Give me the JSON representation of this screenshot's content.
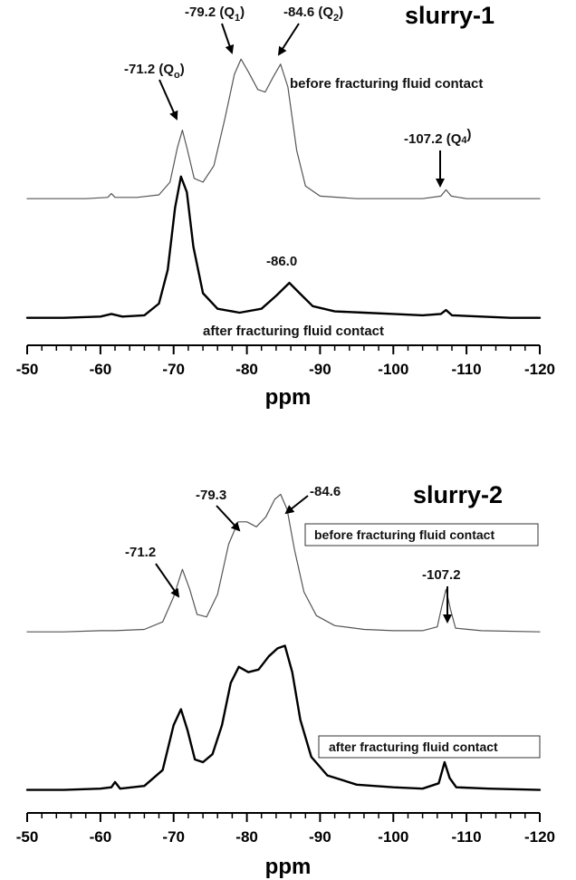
{
  "chart_data": [
    {
      "type": "line",
      "title": "slurry-1",
      "xlabel": "ppm",
      "xlim": [
        -50,
        -120
      ],
      "x_reversed": true,
      "x_ticks": [
        "-50",
        "-60",
        "-70",
        "-80",
        "-90",
        "-100",
        "-110",
        "-120"
      ],
      "x_tick_values": [
        -50,
        -60,
        -70,
        -80,
        -90,
        -100,
        -110,
        -120
      ],
      "y_axis_shown": false,
      "series": [
        {
          "name": "before fracturing fluid contact",
          "color": "#555555",
          "points": [
            [
              -50,
              0.02
            ],
            [
              -54,
              0.02
            ],
            [
              -58,
              0.02
            ],
            [
              -61,
              0.03
            ],
            [
              -61.5,
              0.06
            ],
            [
              -62,
              0.03
            ],
            [
              -65,
              0.03
            ],
            [
              -68,
              0.05
            ],
            [
              -69.5,
              0.15
            ],
            [
              -70.5,
              0.42
            ],
            [
              -71.2,
              0.56
            ],
            [
              -71.9,
              0.4
            ],
            [
              -72.8,
              0.18
            ],
            [
              -74,
              0.15
            ],
            [
              -75.5,
              0.28
            ],
            [
              -77,
              0.65
            ],
            [
              -78.3,
              1.0
            ],
            [
              -79.2,
              1.12
            ],
            [
              -80.2,
              1.02
            ],
            [
              -81.5,
              0.88
            ],
            [
              -82.5,
              0.86
            ],
            [
              -83.6,
              0.98
            ],
            [
              -84.6,
              1.08
            ],
            [
              -85.6,
              0.9
            ],
            [
              -86.8,
              0.4
            ],
            [
              -88,
              0.12
            ],
            [
              -90,
              0.04
            ],
            [
              -95,
              0.02
            ],
            [
              -100,
              0.02
            ],
            [
              -104,
              0.02
            ],
            [
              -106.5,
              0.04
            ],
            [
              -107.2,
              0.09
            ],
            [
              -107.9,
              0.04
            ],
            [
              -110,
              0.02
            ],
            [
              -115,
              0.02
            ],
            [
              -120,
              0.02
            ]
          ]
        },
        {
          "name": "after fracturing fluid contact",
          "color": "#000000",
          "points": [
            [
              -50,
              0.03
            ],
            [
              -55,
              0.03
            ],
            [
              -60,
              0.04
            ],
            [
              -61.5,
              0.06
            ],
            [
              -63,
              0.04
            ],
            [
              -66,
              0.05
            ],
            [
              -68,
              0.14
            ],
            [
              -69.2,
              0.4
            ],
            [
              -70.2,
              0.88
            ],
            [
              -71.0,
              1.12
            ],
            [
              -71.8,
              1.0
            ],
            [
              -72.7,
              0.58
            ],
            [
              -74,
              0.22
            ],
            [
              -76,
              0.1
            ],
            [
              -79,
              0.07
            ],
            [
              -82,
              0.1
            ],
            [
              -84,
              0.2
            ],
            [
              -85.8,
              0.3
            ],
            [
              -87.2,
              0.22
            ],
            [
              -89,
              0.12
            ],
            [
              -92,
              0.08
            ],
            [
              -96,
              0.07
            ],
            [
              -100,
              0.06
            ],
            [
              -104,
              0.05
            ],
            [
              -106.5,
              0.06
            ],
            [
              -107.2,
              0.09
            ],
            [
              -108,
              0.05
            ],
            [
              -112,
              0.04
            ],
            [
              -116,
              0.03
            ],
            [
              -120,
              0.03
            ]
          ]
        }
      ],
      "annotations": [
        {
          "text": "-71.2 (Qo)",
          "at": -71.2
        },
        {
          "text": "-79.2 (Q1)",
          "at": -79.2
        },
        {
          "text": "-84.6 (Q2)",
          "at": -84.6
        },
        {
          "text": "-107.2 (Q4)",
          "at": -107.2
        },
        {
          "text": "-86.0",
          "at": -86.0
        }
      ]
    },
    {
      "type": "line",
      "title": "slurry-2",
      "xlabel": "ppm",
      "xlim": [
        -50,
        -120
      ],
      "x_reversed": true,
      "x_ticks": [
        "-50",
        "-60",
        "-70",
        "-80",
        "-90",
        "-100",
        "-110",
        "-120"
      ],
      "x_tick_values": [
        -50,
        -60,
        -70,
        -80,
        -90,
        -100,
        -110,
        -120
      ],
      "y_axis_shown": false,
      "series": [
        {
          "name": "before fracturing fluid contact",
          "color": "#555555",
          "points": [
            [
              -50,
              0.02
            ],
            [
              -55,
              0.02
            ],
            [
              -60,
              0.03
            ],
            [
              -62,
              0.03
            ],
            [
              -66,
              0.04
            ],
            [
              -68.5,
              0.1
            ],
            [
              -70,
              0.3
            ],
            [
              -71.2,
              0.52
            ],
            [
              -72.2,
              0.36
            ],
            [
              -73.2,
              0.16
            ],
            [
              -74.5,
              0.14
            ],
            [
              -76,
              0.32
            ],
            [
              -77.5,
              0.72
            ],
            [
              -78.8,
              0.9
            ],
            [
              -80,
              0.9
            ],
            [
              -81.3,
              0.86
            ],
            [
              -82.6,
              0.94
            ],
            [
              -83.8,
              1.08
            ],
            [
              -84.6,
              1.12
            ],
            [
              -85.5,
              1.0
            ],
            [
              -86.5,
              0.68
            ],
            [
              -87.8,
              0.34
            ],
            [
              -89.5,
              0.15
            ],
            [
              -92,
              0.07
            ],
            [
              -96,
              0.04
            ],
            [
              -100,
              0.03
            ],
            [
              -104,
              0.03
            ],
            [
              -106,
              0.06
            ],
            [
              -106.6,
              0.22
            ],
            [
              -107.2,
              0.36
            ],
            [
              -107.8,
              0.2
            ],
            [
              -108.5,
              0.05
            ],
            [
              -112,
              0.03
            ],
            [
              -120,
              0.02
            ]
          ]
        },
        {
          "name": "after fracturing fluid contact",
          "color": "#000000",
          "points": [
            [
              -50,
              0.03
            ],
            [
              -55,
              0.03
            ],
            [
              -60,
              0.04
            ],
            [
              -61.5,
              0.05
            ],
            [
              -62,
              0.09
            ],
            [
              -62.7,
              0.04
            ],
            [
              -66,
              0.06
            ],
            [
              -68.5,
              0.18
            ],
            [
              -70,
              0.52
            ],
            [
              -71.0,
              0.64
            ],
            [
              -71.9,
              0.48
            ],
            [
              -72.9,
              0.26
            ],
            [
              -74,
              0.24
            ],
            [
              -75.3,
              0.3
            ],
            [
              -76.6,
              0.52
            ],
            [
              -77.8,
              0.84
            ],
            [
              -78.9,
              0.96
            ],
            [
              -80.2,
              0.92
            ],
            [
              -81.6,
              0.94
            ],
            [
              -83,
              1.04
            ],
            [
              -84.2,
              1.1
            ],
            [
              -85.2,
              1.12
            ],
            [
              -86.2,
              0.92
            ],
            [
              -87.3,
              0.56
            ],
            [
              -88.8,
              0.28
            ],
            [
              -91,
              0.14
            ],
            [
              -95,
              0.07
            ],
            [
              -100,
              0.05
            ],
            [
              -104,
              0.04
            ],
            [
              -106.2,
              0.08
            ],
            [
              -107.0,
              0.24
            ],
            [
              -107.7,
              0.12
            ],
            [
              -108.6,
              0.05
            ],
            [
              -113,
              0.04
            ],
            [
              -120,
              0.03
            ]
          ]
        }
      ],
      "annotations": [
        {
          "text": "-71.2",
          "at": -71.2
        },
        {
          "text": "-79.3",
          "at": -79.3
        },
        {
          "text": "-84.6",
          "at": -84.6
        },
        {
          "text": "-107.2",
          "at": -107.2
        }
      ]
    }
  ],
  "panels": {
    "p1": {
      "title": "slurry-1",
      "xlabel": "ppm",
      "ticks": [
        "-50",
        "-60",
        "-70",
        "-80",
        "-90",
        "-100",
        "-110",
        "-120"
      ],
      "label_before": "before fracturing fluid contact",
      "label_after": "after fracturing fluid contact",
      "ann_q0_main": "-71.2 (Q",
      "ann_q0_sub": "o",
      "ann_q0_close": ")",
      "ann_q1_main": "-79.2 (Q",
      "ann_q1_sub": "1",
      "ann_q1_close": ")",
      "ann_q2_main": "-84.6 (Q",
      "ann_q2_sub": "2",
      "ann_q2_close": ")",
      "ann_q4_main": "-107.2 (Q",
      "ann_q4_sub": "4",
      "ann_q4_close": ")",
      "ann_860": "-86.0"
    },
    "p2": {
      "title": "slurry-2",
      "xlabel": "ppm",
      "ticks": [
        "-50",
        "-60",
        "-70",
        "-80",
        "-90",
        "-100",
        "-110",
        "-120"
      ],
      "label_before": "before fracturing fluid contact",
      "label_after": "after fracturing fluid contact",
      "ann_712": "-71.2",
      "ann_793": "-79.3",
      "ann_846": "-84.6",
      "ann_1072": "-107.2"
    }
  }
}
